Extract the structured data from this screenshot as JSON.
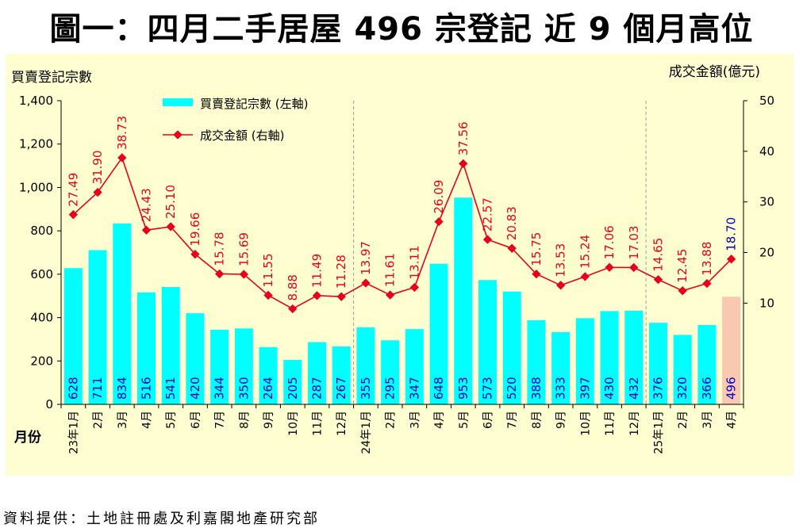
{
  "headline": "圖一：四月二手居屋 496 宗登記  近 9 個月高位",
  "source": "資料提供：土地註冊處及利嘉閣地產研究部",
  "colors": {
    "bar": "#00ffff",
    "bar_highlight": "#f8c8b0",
    "line": "#e8001a",
    "label_red": "#e8001a",
    "label_blue": "#0000cc",
    "panel": "#fefed0",
    "divider": "#a0a0a0"
  },
  "chart_data": {
    "type": "bar+line",
    "left_axis_title": "買賣登記宗數",
    "right_axis_title": "成交金額(億元)",
    "x_axis_title": "月份",
    "left_ylim": [
      0,
      1400
    ],
    "left_ticks": [
      "0",
      "200",
      "400",
      "600",
      "800",
      "1,000",
      "1,200",
      "1,400"
    ],
    "right_ylim": [
      -10,
      50
    ],
    "right_ticks": [
      "10",
      "20",
      "30",
      "40",
      "50"
    ],
    "categories": [
      "23年1月",
      "2月",
      "3月",
      "4月",
      "5月",
      "6月",
      "7月",
      "8月",
      "9月",
      "10月",
      "11月",
      "12月",
      "24年1月",
      "2月",
      "3月",
      "4月",
      "5月",
      "6月",
      "7月",
      "8月",
      "9月",
      "10月",
      "11月",
      "12月",
      "25年1月",
      "2月",
      "3月",
      "4月"
    ],
    "series": [
      {
        "name": "買賣登記宗數 (左軸)",
        "type": "bar",
        "axis": "left",
        "values": [
          628,
          711,
          834,
          516,
          541,
          420,
          344,
          350,
          264,
          205,
          287,
          267,
          355,
          295,
          347,
          648,
          953,
          573,
          520,
          388,
          333,
          397,
          430,
          432,
          376,
          320,
          366,
          496
        ],
        "value_labels": [
          "628",
          "711",
          "834",
          "516",
          "541",
          "420",
          "344",
          "350",
          "264",
          "205",
          "287",
          "267",
          "355",
          "295",
          "347",
          "648",
          "953",
          "573",
          "520",
          "388",
          "333",
          "397",
          "430",
          "432",
          "376",
          "320",
          "366",
          "496"
        ]
      },
      {
        "name": "成交金額 (右軸)",
        "type": "line",
        "axis": "right",
        "values": [
          27.49,
          31.9,
          38.73,
          24.43,
          25.1,
          19.66,
          15.78,
          15.69,
          11.55,
          8.88,
          11.49,
          11.28,
          13.97,
          11.61,
          13.11,
          26.09,
          37.56,
          22.57,
          20.83,
          15.75,
          13.53,
          15.24,
          17.06,
          17.03,
          14.65,
          12.45,
          13.88,
          18.7
        ],
        "value_labels": [
          "27.49",
          "31.90",
          "38.73",
          "24.43",
          "25.10",
          "19.66",
          "15.78",
          "15.69",
          "11.55",
          "8.88",
          "11.49",
          "11.28",
          "13.97",
          "11.61",
          "13.11",
          "26.09",
          "37.56",
          "22.57",
          "20.83",
          "15.75",
          "13.53",
          "15.24",
          "17.06",
          "17.03",
          "14.65",
          "12.45",
          "13.88",
          "18.70"
        ]
      }
    ],
    "highlight_index": 27,
    "year_dividers_before": [
      12,
      24
    ],
    "legend_position": "top-left"
  }
}
